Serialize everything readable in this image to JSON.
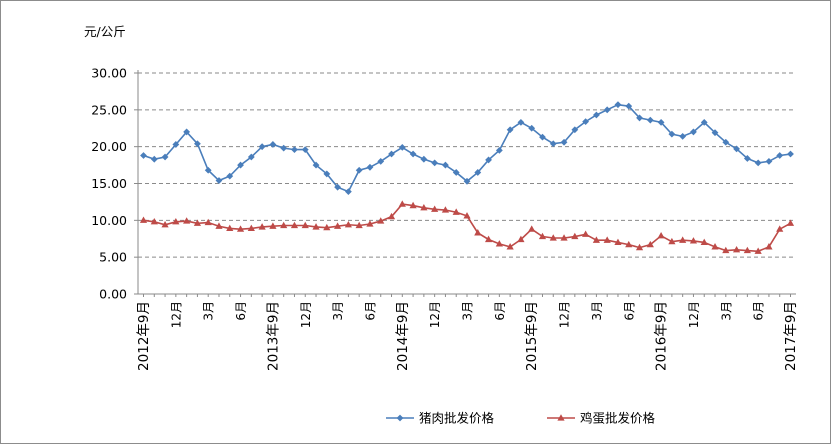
{
  "chart_data": {
    "type": "line",
    "title": "",
    "ylabel": "元/公斤",
    "ylim": [
      0,
      30
    ],
    "yticks": [
      "0.00",
      "5.00",
      "10.00",
      "15.00",
      "20.00",
      "25.00",
      "30.00"
    ],
    "grid": true,
    "legend_position": "bottom",
    "x": [
      "2012年9月",
      "2012年10月",
      "2012年11月",
      "2012年12月",
      "2013年1月",
      "2013年2月",
      "2013年3月",
      "2013年4月",
      "2013年5月",
      "2013年6月",
      "2013年7月",
      "2013年8月",
      "2013年9月",
      "2013年10月",
      "2013年11月",
      "2013年12月",
      "2014年1月",
      "2014年2月",
      "2014年3月",
      "2014年4月",
      "2014年5月",
      "2014年6月",
      "2014年7月",
      "2014年8月",
      "2014年9月",
      "2014年10月",
      "2014年11月",
      "2014年12月",
      "2015年1月",
      "2015年2月",
      "2015年3月",
      "2015年4月",
      "2015年5月",
      "2015年6月",
      "2015年7月",
      "2015年8月",
      "2015年9月",
      "2015年10月",
      "2015年11月",
      "2015年12月",
      "2016年1月",
      "2016年2月",
      "2016年3月",
      "2016年4月",
      "2016年5月",
      "2016年6月",
      "2016年7月",
      "2016年8月",
      "2016年9月",
      "2016年10月",
      "2016年11月",
      "2016年12月",
      "2017年1月",
      "2017年2月",
      "2017年3月",
      "2017年4月",
      "2017年5月",
      "2017年6月",
      "2017年7月",
      "2017年8月",
      "2017年9月"
    ],
    "x_tick_labels": [
      "2012年9月",
      "",
      "",
      "12月",
      "",
      "",
      "3月",
      "",
      "",
      "6月",
      "",
      "",
      "2013年9月",
      "",
      "",
      "12月",
      "",
      "",
      "3月",
      "",
      "",
      "6月",
      "",
      "",
      "2014年9月",
      "",
      "",
      "12月",
      "",
      "",
      "3月",
      "",
      "",
      "6月",
      "",
      "",
      "2015年9月",
      "",
      "",
      "12月",
      "",
      "",
      "3月",
      "",
      "",
      "6月",
      "",
      "",
      "2016年9月",
      "",
      "",
      "12月",
      "",
      "",
      "3月",
      "",
      "",
      "6月",
      "",
      "",
      "2017年9月"
    ],
    "series": [
      {
        "name": "猪肉批发价格",
        "color": "#4a7ebb",
        "marker": "diamond",
        "values": [
          18.8,
          18.3,
          18.6,
          20.3,
          22.0,
          20.4,
          16.8,
          15.4,
          16.0,
          17.5,
          18.6,
          20.0,
          20.3,
          19.8,
          19.6,
          19.6,
          17.5,
          16.3,
          14.5,
          13.9,
          16.8,
          17.2,
          18.0,
          19.0,
          19.9,
          19.0,
          18.3,
          17.8,
          17.5,
          16.5,
          15.3,
          16.5,
          18.2,
          19.5,
          22.3,
          23.3,
          22.5,
          21.3,
          20.4,
          20.6,
          22.3,
          23.4,
          24.3,
          25.0,
          25.7,
          25.5,
          23.9,
          23.6,
          23.3,
          21.7,
          21.4,
          22.0,
          23.3,
          21.9,
          20.6,
          19.7,
          18.4,
          17.8,
          18.0,
          18.8,
          19.0
        ]
      },
      {
        "name": "鸡蛋批发价格",
        "color": "#be4b48",
        "marker": "triangle",
        "values": [
          10.0,
          9.8,
          9.4,
          9.8,
          9.9,
          9.6,
          9.7,
          9.2,
          8.9,
          8.8,
          8.9,
          9.1,
          9.2,
          9.3,
          9.3,
          9.3,
          9.1,
          9.0,
          9.2,
          9.4,
          9.3,
          9.5,
          9.9,
          10.5,
          12.2,
          12.0,
          11.7,
          11.5,
          11.4,
          11.1,
          10.6,
          8.3,
          7.4,
          6.8,
          6.4,
          7.4,
          8.8,
          7.8,
          7.6,
          7.6,
          7.8,
          8.1,
          7.3,
          7.3,
          7.0,
          6.7,
          6.3,
          6.7,
          7.9,
          7.1,
          7.3,
          7.2,
          7.0,
          6.4,
          5.9,
          6.0,
          5.9,
          5.8,
          6.4,
          8.8,
          9.6
        ]
      }
    ]
  }
}
